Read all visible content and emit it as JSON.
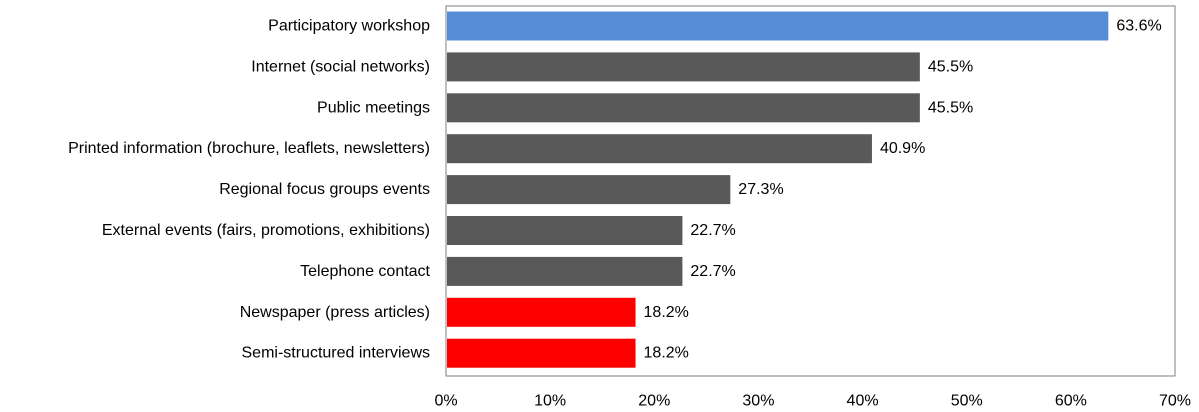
{
  "chart_data": {
    "type": "bar",
    "orientation": "horizontal",
    "title": "",
    "xlabel": "",
    "ylabel": "",
    "xlim": [
      0,
      70
    ],
    "grid": false,
    "legend": "none",
    "categories": [
      "Participatory workshop",
      "Internet (social networks)",
      "Public meetings",
      "Printed information (brochure, leaflets, newsletters)",
      "Regional focus groups events",
      "External events (fairs, promotions, exhibitions)",
      "Telephone contact",
      "Newspaper (press articles)",
      "Semi-structured interviews"
    ],
    "values": [
      63.6,
      45.5,
      45.5,
      40.9,
      27.3,
      22.7,
      22.7,
      18.2,
      18.2
    ],
    "value_labels": [
      "63.6%",
      "45.5%",
      "45.5%",
      "40.9%",
      "27.3%",
      "22.7%",
      "22.7%",
      "18.2%",
      "18.2%"
    ],
    "bar_colors": [
      "#558ed5",
      "#595959",
      "#595959",
      "#595959",
      "#595959",
      "#595959",
      "#595959",
      "#ff0000",
      "#ff0000"
    ],
    "x_ticks": [
      0,
      10,
      20,
      30,
      40,
      50,
      60,
      70
    ],
    "x_tick_labels": [
      "0%",
      "10%",
      "20%",
      "30%",
      "40%",
      "50%",
      "60%",
      "70%"
    ]
  }
}
